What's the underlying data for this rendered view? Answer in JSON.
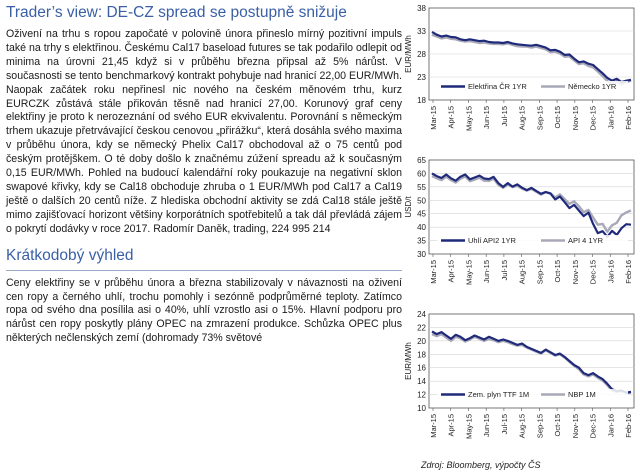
{
  "article": {
    "title": "Trader’s view: DE-CZ spread se postupně snižuje",
    "paragraph": "Oživení na trhu s ropou započaté v polovině února přineslo mírný pozitivní impuls také na trhy s elektřinou. Českému Cal17 baseload futures se tak podařilo odlepit od minima na úrovni 21,45 když si v průběhu března připsal až 5% nárůst. V současnosti se tento benchmarkový kontrakt pohybuje nad hranicí 22,00 EUR/MWh. Naopak začátek roku nepřinesl nic nového na českém měnovém trhu, kurz EURCZK zůstává stále přikován těsně nad hranicí 27,00. Korunový graf ceny elektřiny je proto k nerozeznání od svého EUR ekvivalentu. Porovnání s německým trhem ukazuje přetrvávající českou cenovou „přirážku“, která dosáhla svého maxima v průběhu února, kdy se německý Phelix Cal17 obchodoval až o 75 centů pod českým protějškem. O té doby došlo k značnému zúžení spreadu až k současným 0,15 EUR/MWh. Pohled na budoucí kalendářní roky poukazuje na negativní sklon swapové křivky, kdy se Cal18 obchoduje zhruba o 1 EUR/MWh pod Cal17 a Cal19 ještě o dalších 20 centů níže. Z hlediska obchodní aktivity se zdá Cal18 stále ještě mimo zajišťovací horizont většiny korporátních spotřebitelů a tak dál převládá zájem o pokrytí dodávky v roce 2017. Radomír Daněk, trading, 224 995 214",
    "subtitle": "Krátkodobý výhled",
    "paragraph2": "Ceny elektřiny se v průběhu února a března stabilizovaly v návaznosti na oživení cen ropy a černého uhlí, trochu pomohly i sezónně podprůměrné teploty. Zatímco ropa od svého dna posílila asi o 40%, uhlí vzrostlo asi o 15%. Hlavní podporu pro nárůst cen ropy poskytly plány OPEC na zmrazení produkce. Schůzka OPEC plus některých nečlenských zemí (dohromady 73% světové"
  },
  "source_note": "Zdroj: Bloomberg, výpočty ČS",
  "colors": {
    "accent": "#3a5fa6",
    "series_dark": "#1f2a7a",
    "series_light": "#a8a8b8"
  },
  "chart_data": [
    {
      "type": "line",
      "ylabel": "EUR/MWh",
      "ylim": [
        18,
        38
      ],
      "yticks": [
        18,
        23,
        28,
        33,
        38
      ],
      "xticks": [
        "Mar-15",
        "Apr-15",
        "May-15",
        "Jun-15",
        "Jul-15",
        "Aug-15",
        "Sep-15",
        "Oct-15",
        "Nov-15",
        "Dec-15",
        "Jan-16",
        "Feb-16"
      ],
      "series": [
        {
          "name": "Elektřina ČR 1YR",
          "color": "#1f2a7a",
          "values": [
            32.8,
            32.2,
            31.8,
            32.0,
            31.7,
            31.6,
            31.2,
            31.0,
            31.2,
            31.0,
            30.8,
            30.9,
            30.6,
            30.5,
            30.5,
            30.4,
            30.6,
            30.3,
            30.1,
            30.0,
            29.9,
            29.8,
            30.0,
            29.7,
            29.4,
            28.8,
            28.9,
            28.5,
            27.8,
            27.9,
            27.0,
            26.2,
            26.4,
            25.9,
            25.6,
            24.7,
            23.8,
            22.8,
            22.2,
            22.6,
            21.9,
            22.2,
            22.4
          ]
        },
        {
          "name": "Německo 1YR",
          "color": "#a8a8b8",
          "values": [
            32.2,
            31.8,
            31.4,
            31.6,
            31.3,
            31.2,
            30.9,
            30.7,
            30.8,
            30.6,
            30.4,
            30.5,
            30.3,
            30.2,
            30.2,
            30.1,
            30.3,
            30.0,
            29.7,
            29.6,
            29.6,
            29.4,
            29.6,
            29.3,
            29.0,
            28.4,
            28.5,
            28.1,
            27.4,
            27.5,
            26.6,
            25.8,
            26.0,
            25.4,
            25.1,
            24.2,
            23.2,
            22.1,
            21.5,
            22.0,
            21.4,
            21.9,
            22.2
          ]
        }
      ]
    },
    {
      "type": "line",
      "ylabel": "USD/t",
      "ylim": [
        30,
        65
      ],
      "yticks": [
        30,
        35,
        40,
        45,
        50,
        55,
        60,
        65
      ],
      "xticks": [
        "Mar-15",
        "Apr-15",
        "May-15",
        "Jun-15",
        "Jul-15",
        "Aug-15",
        "Sep-15",
        "Oct-15",
        "Nov-15",
        "Dec-15",
        "Jan-16",
        "Feb-16"
      ],
      "series": [
        {
          "name": "Uhlí API2 1YR",
          "color": "#1f2a7a",
          "values": [
            60.0,
            59.0,
            58.3,
            59.6,
            58.2,
            57.3,
            58.8,
            59.6,
            57.8,
            58.5,
            59.2,
            58.1,
            57.9,
            58.7,
            56.4,
            55.0,
            56.4,
            55.1,
            55.9,
            54.7,
            53.8,
            54.6,
            53.5,
            52.4,
            53.1,
            52.5,
            50.3,
            51.4,
            49.3,
            47.1,
            48.3,
            46.2,
            44.1,
            45.4,
            41.2,
            37.8,
            38.5,
            36.4,
            38.6,
            37.1,
            39.6,
            41.1,
            40.9
          ]
        },
        {
          "name": "API 4 1YR",
          "color": "#a8a8b8",
          "values": [
            59.0,
            58.2,
            57.5,
            58.8,
            57.5,
            56.6,
            58.0,
            58.9,
            57.1,
            57.7,
            58.4,
            57.3,
            57.2,
            58.0,
            55.8,
            54.6,
            55.9,
            54.9,
            55.4,
            54.4,
            53.6,
            54.3,
            53.2,
            52.1,
            53.0,
            52.6,
            51.0,
            52.2,
            50.4,
            48.7,
            49.6,
            47.8,
            45.6,
            46.4,
            43.6,
            40.9,
            41.2,
            38.3,
            40.7,
            41.6,
            44.4,
            45.5,
            46.2
          ]
        }
      ]
    },
    {
      "type": "line",
      "ylabel": "EUR/MWh",
      "ylim": [
        10,
        24
      ],
      "yticks": [
        10,
        12,
        14,
        16,
        18,
        20,
        22,
        24
      ],
      "xticks": [
        "Mar-15",
        "Apr-15",
        "May-15",
        "Jun-15",
        "Jul-15",
        "Aug-15",
        "Sep-15",
        "Oct-15",
        "Nov-15",
        "Dec-15",
        "Jan-16",
        "Feb-16"
      ],
      "series": [
        {
          "name": "Zem. plyn TTF 1M",
          "color": "#1f2a7a",
          "values": [
            21.4,
            21.0,
            21.3,
            20.8,
            20.3,
            20.9,
            20.6,
            20.1,
            20.4,
            20.8,
            20.5,
            20.2,
            20.6,
            20.3,
            20.0,
            20.2,
            20.0,
            19.7,
            19.4,
            19.6,
            19.1,
            18.8,
            18.5,
            18.2,
            18.7,
            18.3,
            17.9,
            18.1,
            17.6,
            17.0,
            16.4,
            16.0,
            15.2,
            14.9,
            15.2,
            14.7,
            14.3,
            13.6,
            12.8,
            12.5,
            12.6,
            12.3,
            12.4
          ]
        },
        {
          "name": "NBP 1M",
          "color": "#a8a8b8",
          "values": [
            21.0,
            20.7,
            21.0,
            20.5,
            20.0,
            20.6,
            20.4,
            19.9,
            20.2,
            20.6,
            20.3,
            20.0,
            20.3,
            20.1,
            19.8,
            20.0,
            19.8,
            19.5,
            19.3,
            19.4,
            19.0,
            18.7,
            18.4,
            18.1,
            18.6,
            18.2,
            17.8,
            18.0,
            17.5,
            16.9,
            16.3,
            15.8,
            15.0,
            14.7,
            15.0,
            14.5,
            14.1,
            13.4,
            12.6,
            12.4,
            12.5,
            12.2,
            12.3
          ]
        }
      ]
    }
  ]
}
